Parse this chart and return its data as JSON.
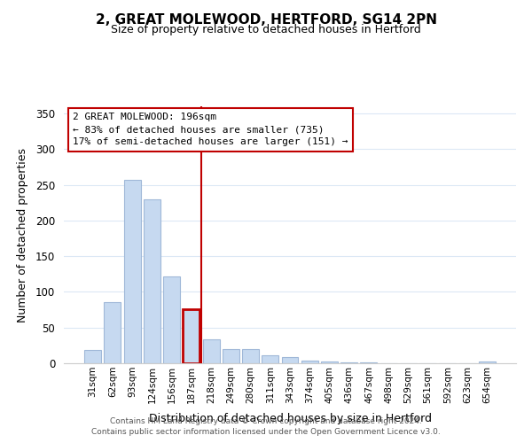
{
  "title": "2, GREAT MOLEWOOD, HERTFORD, SG14 2PN",
  "subtitle": "Size of property relative to detached houses in Hertford",
  "xlabel": "Distribution of detached houses by size in Hertford",
  "ylabel": "Number of detached properties",
  "bar_labels": [
    "31sqm",
    "62sqm",
    "93sqm",
    "124sqm",
    "156sqm",
    "187sqm",
    "218sqm",
    "249sqm",
    "280sqm",
    "311sqm",
    "343sqm",
    "374sqm",
    "405sqm",
    "436sqm",
    "467sqm",
    "498sqm",
    "529sqm",
    "561sqm",
    "592sqm",
    "623sqm",
    "654sqm"
  ],
  "bar_values": [
    19,
    86,
    257,
    230,
    122,
    76,
    33,
    20,
    20,
    11,
    9,
    4,
    3,
    1,
    1,
    0,
    0,
    0,
    0,
    0,
    2
  ],
  "bar_color": "#c6d9f0",
  "bar_edge_color": "#a0b8d8",
  "highlight_bar_index": 5,
  "highlight_bar_edge_color": "#c00000",
  "vline_color": "#c00000",
  "annotation_title": "2 GREAT MOLEWOOD: 196sqm",
  "annotation_line1": "← 83% of detached houses are smaller (735)",
  "annotation_line2": "17% of semi-detached houses are larger (151) →",
  "annotation_box_color": "#ffffff",
  "annotation_box_edge": "#c00000",
  "ylim": [
    0,
    360
  ],
  "yticks": [
    0,
    50,
    100,
    150,
    200,
    250,
    300,
    350
  ],
  "footer1": "Contains HM Land Registry data © Crown copyright and database right 2024.",
  "footer2": "Contains public sector information licensed under the Open Government Licence v3.0.",
  "background_color": "#ffffff",
  "grid_color": "#dce8f5"
}
